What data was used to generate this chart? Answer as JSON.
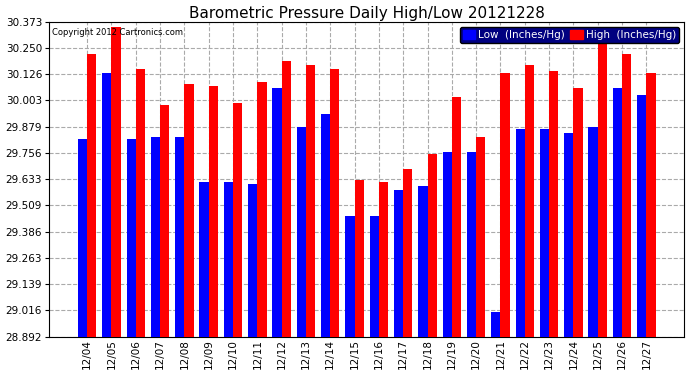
{
  "title": "Barometric Pressure Daily High/Low 20121228",
  "copyright": "Copyright 2012 Cartronics.com",
  "legend_low": "Low  (Inches/Hg)",
  "legend_high": "High  (Inches/Hg)",
  "dates": [
    "12/04",
    "12/05",
    "12/06",
    "12/07",
    "12/08",
    "12/09",
    "12/10",
    "12/11",
    "12/12",
    "12/13",
    "12/14",
    "12/15",
    "12/16",
    "12/17",
    "12/18",
    "12/19",
    "12/20",
    "12/21",
    "12/22",
    "12/23",
    "12/24",
    "12/25",
    "12/26",
    "12/27"
  ],
  "low_values": [
    29.82,
    30.13,
    29.82,
    29.83,
    29.83,
    29.62,
    29.62,
    29.61,
    30.06,
    29.88,
    29.94,
    29.46,
    29.46,
    29.58,
    29.6,
    29.76,
    29.76,
    29.01,
    29.87,
    29.87,
    29.85,
    29.88,
    30.06,
    30.03
  ],
  "high_values": [
    30.22,
    30.35,
    30.15,
    29.98,
    30.08,
    30.07,
    29.99,
    30.09,
    30.19,
    30.17,
    30.15,
    29.63,
    29.62,
    29.68,
    29.75,
    30.02,
    29.83,
    30.13,
    30.17,
    30.14,
    30.06,
    30.32,
    30.22,
    30.13
  ],
  "low_color": "#0000ff",
  "high_color": "#ff0000",
  "bg_color": "#ffffff",
  "grid_color": "#aaaaaa",
  "ymin": 28.892,
  "ymax": 30.373,
  "yticks": [
    28.892,
    29.016,
    29.139,
    29.263,
    29.386,
    29.509,
    29.633,
    29.756,
    29.879,
    30.003,
    30.126,
    30.25,
    30.373
  ],
  "title_fontsize": 11,
  "tick_fontsize": 7.5,
  "legend_fontsize": 7.5,
  "bar_width": 0.38
}
